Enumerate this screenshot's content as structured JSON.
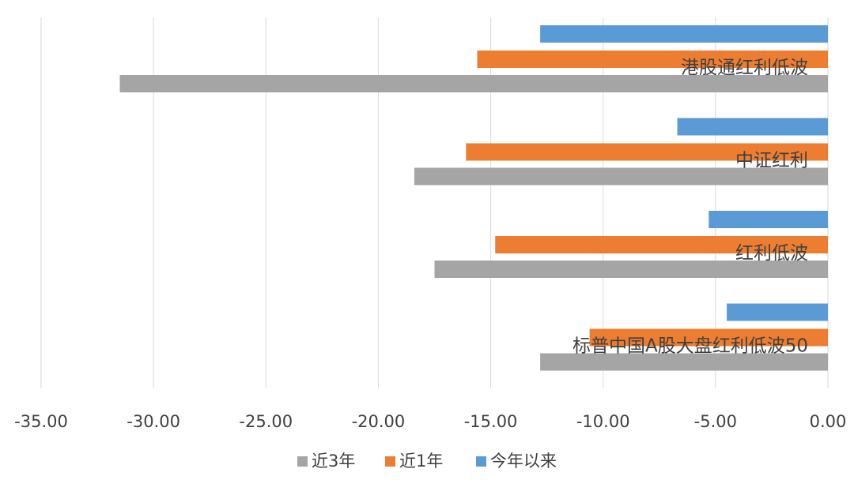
{
  "chart_data": {
    "type": "bar",
    "orientation": "horizontal",
    "title": "",
    "xlabel": "",
    "ylabel": "",
    "categories": [
      "标普中国A股大盘红利低波50",
      "红利低波",
      "中证红利",
      "港股通红利低波"
    ],
    "series": [
      {
        "name": "近3年",
        "color": "#a5a5a5",
        "values": [
          -12.8,
          -17.5,
          -18.4,
          -31.5
        ]
      },
      {
        "name": "近1年",
        "color": "#ed7d31",
        "values": [
          -10.6,
          -14.8,
          -16.1,
          -15.6
        ]
      },
      {
        "name": "今年以来",
        "color": "#5b9bd5",
        "values": [
          -4.5,
          -5.3,
          -6.7,
          -12.8
        ]
      }
    ],
    "xlim": [
      -35,
      0
    ],
    "xticks": [
      -35,
      -30,
      -25,
      -20,
      -15,
      -10,
      -5,
      0
    ],
    "xtick_labels": [
      "-35.00",
      "-30.00",
      "-25.00",
      "-20.00",
      "-15.00",
      "-10.00",
      "-5.00",
      "0.00"
    ],
    "grid": true,
    "legend_position": "bottom"
  }
}
